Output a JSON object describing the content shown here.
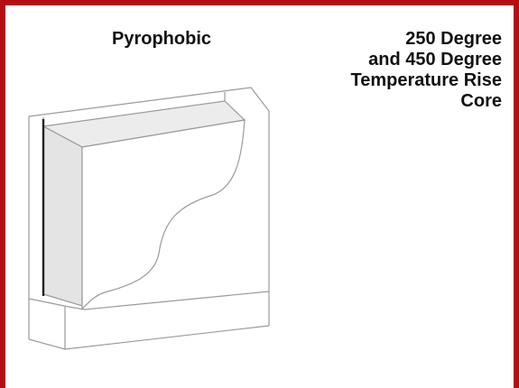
{
  "labels": {
    "left": "Pyrophobic",
    "right_lines": [
      "250 Degree",
      "and 450 Degree",
      "Temperature Rise",
      "Core"
    ]
  },
  "colors": {
    "frame": "#b30e16",
    "outline": "#9a9a9a",
    "core_fill": "#ececec",
    "edge": "#222222"
  }
}
